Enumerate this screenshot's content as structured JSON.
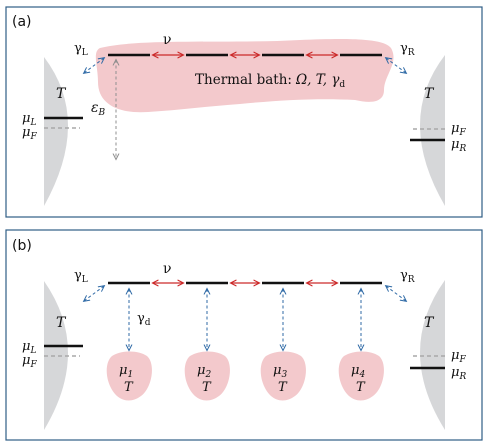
{
  "panel_a": {
    "label": "(a)",
    "gamma_left": "γ",
    "gamma_left_sub": "L",
    "gamma_right": "γ",
    "gamma_right_sub": "R",
    "hopping": "ν",
    "epsilon": "ε",
    "epsilon_sub": "B",
    "bath_text": "Thermal bath:",
    "bath_params": "Ω, T, γ",
    "bath_params_sub": "d",
    "left_T": "T",
    "left_mu": "μ",
    "left_mu_sub": "L",
    "left_muF": "μ",
    "left_muF_sub": "F",
    "right_T": "T",
    "right_mu": "μ",
    "right_mu_sub": "R",
    "right_muF": "μ",
    "right_muF_sub": "F"
  },
  "panel_b": {
    "label": "(b)",
    "gamma_left": "γ",
    "gamma_left_sub": "L",
    "gamma_right": "γ",
    "gamma_right_sub": "R",
    "hopping": "ν",
    "gamma_d": "γ",
    "gamma_d_sub": "d",
    "left_T": "T",
    "left_mu": "μ",
    "left_mu_sub": "L",
    "left_muF": "μ",
    "left_muF_sub": "F",
    "right_T": "T",
    "right_mu": "μ",
    "right_mu_sub": "R",
    "right_muF": "μ",
    "right_muF_sub": "F",
    "probes": [
      {
        "mu": "μ",
        "sub": "1",
        "T": "T"
      },
      {
        "mu": "μ",
        "sub": "2",
        "T": "T"
      },
      {
        "mu": "μ",
        "sub": "3",
        "T": "T"
      },
      {
        "mu": "μ",
        "sub": "4",
        "T": "T"
      }
    ]
  },
  "colors": {
    "frame": "#2f5d86",
    "reservoir": "#d6d7d9",
    "bath": "#f3c9cc",
    "hopping_arrow": "#cc2a2a",
    "coupling_arrow": "#2f6aa6"
  }
}
